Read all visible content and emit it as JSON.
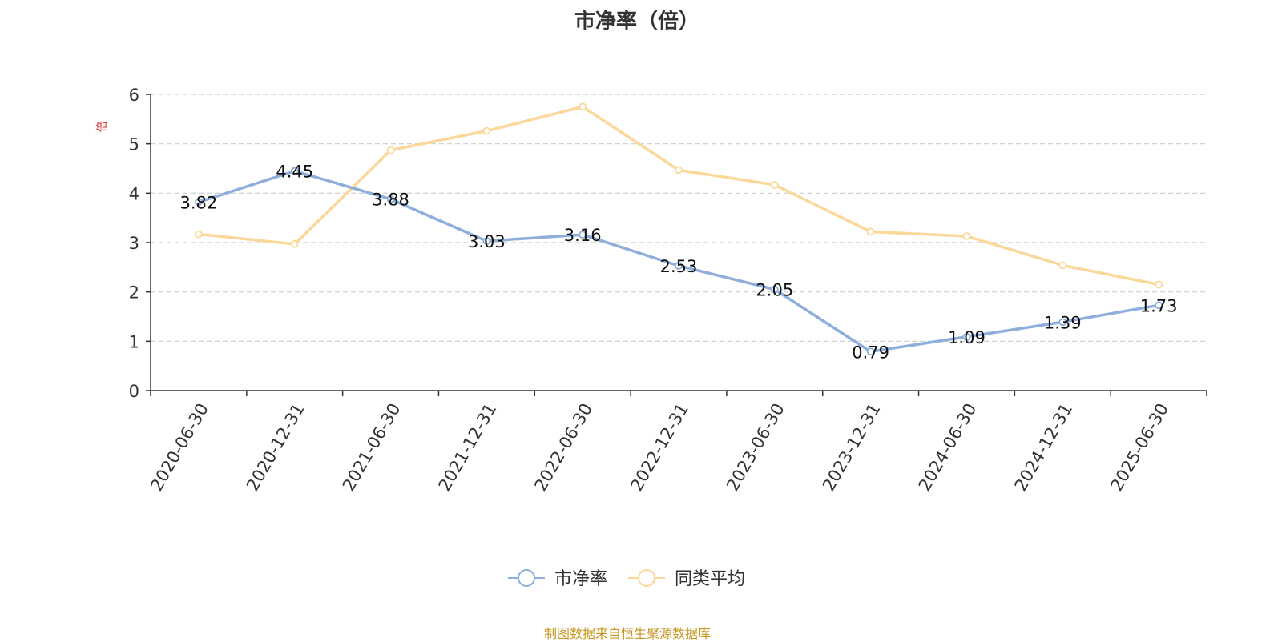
{
  "colors": {
    "series_pb": "#8eaedb",
    "series_avg": "#fbd89a",
    "axis": "#333333",
    "grid": "#cccccc",
    "ylabel": "#e02020",
    "source": "#c8961e"
  },
  "footer": {
    "source": "制图数据来自恒生聚源数据库"
  },
  "chart_data": {
    "type": "line",
    "title": "市净率（倍）",
    "ylabel": "倍",
    "xlabel": "",
    "ylim": [
      0,
      6
    ],
    "yticks": [
      0,
      1,
      2,
      3,
      4,
      5,
      6
    ],
    "grid": true,
    "legend_position": "bottom-center",
    "categories": [
      "2020-06-30",
      "2020-12-31",
      "2021-06-30",
      "2021-12-31",
      "2022-06-30",
      "2022-12-31",
      "2023-06-30",
      "2023-12-31",
      "2024-06-30",
      "2024-12-31",
      "2025-06-30"
    ],
    "series": [
      {
        "name": "市净率",
        "color": "#8eaedb",
        "show_labels": true,
        "values": [
          3.82,
          4.45,
          3.88,
          3.03,
          3.16,
          2.53,
          2.05,
          0.79,
          1.09,
          1.39,
          1.73
        ]
      },
      {
        "name": "同类平均",
        "color": "#fbd89a",
        "show_labels": false,
        "values": [
          3.17,
          2.97,
          4.87,
          5.26,
          5.75,
          4.47,
          4.17,
          3.22,
          3.13,
          2.54,
          2.15
        ]
      }
    ]
  }
}
